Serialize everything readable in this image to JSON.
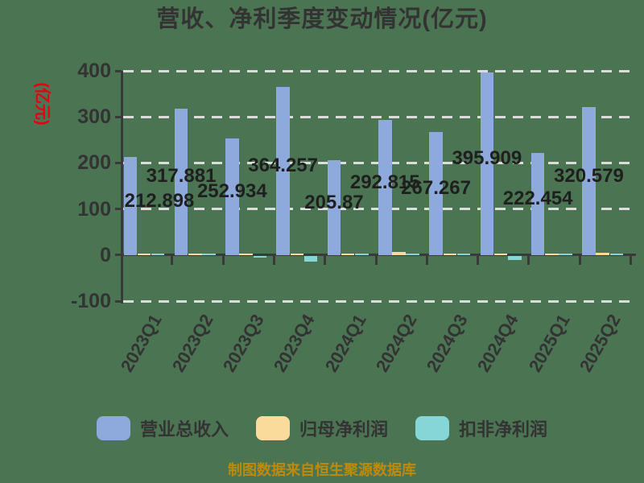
{
  "title": "营收、净利季度变动情况(亿元)",
  "y_axis_unit_label": "(亿元)",
  "footer": {
    "source_note": "制图数据来自恒生聚源数据库"
  },
  "legend": [
    {
      "label": "营业总收入",
      "color": "#8EA9DB"
    },
    {
      "label": "归母净利润",
      "color": "#FADB9C"
    },
    {
      "label": "扣非净利润",
      "color": "#86D6D8"
    }
  ],
  "colors": {
    "background": "#4B7552",
    "title_text": "#333333",
    "axis": "#3A3A3A",
    "gridline": "#DCDCDC",
    "tick_label": "#333333",
    "value_label": "#1F1F1F",
    "y_unit_label": "#E60012",
    "source_note": "#BD8A0B"
  },
  "chart_data": {
    "type": "bar",
    "title": "营收、净利季度变动情况(亿元)",
    "ylabel": "(亿元)",
    "categories": [
      "2023Q1",
      "2023Q2",
      "2023Q3",
      "2023Q4",
      "2024Q1",
      "2024Q2",
      "2024Q3",
      "2024Q4",
      "2025Q1",
      "2025Q2"
    ],
    "series": [
      {
        "name": "营业总收入",
        "color": "#8EA9DB",
        "values": [
          212.898,
          317.881,
          252.934,
          364.257,
          205.87,
          292.815,
          267.267,
          395.909,
          222.454,
          320.579
        ],
        "labeled": true
      },
      {
        "name": "归母净利润",
        "color": "#FADB9C",
        "values": [
          4,
          3,
          3,
          0.5,
          1.5,
          7,
          1.5,
          0.5,
          3.5,
          5
        ],
        "labeled": false,
        "note": "values estimated from bar pixels; not labeled in chart"
      },
      {
        "name": "扣非净利润",
        "color": "#86D6D8",
        "values": [
          3,
          0.5,
          -1.5,
          -12,
          1.5,
          2,
          0.5,
          -9,
          2.5,
          2.5
        ],
        "labeled": false,
        "note": "values estimated from bar pixels; not labeled in chart"
      }
    ],
    "yticks": [
      400,
      300,
      200,
      100,
      0,
      -100
    ],
    "ylim": [
      -100,
      400
    ],
    "grid": "dashed horizontal white lines",
    "legend_position": "bottom",
    "source_note": "制图数据来自恒生聚源数据库"
  }
}
